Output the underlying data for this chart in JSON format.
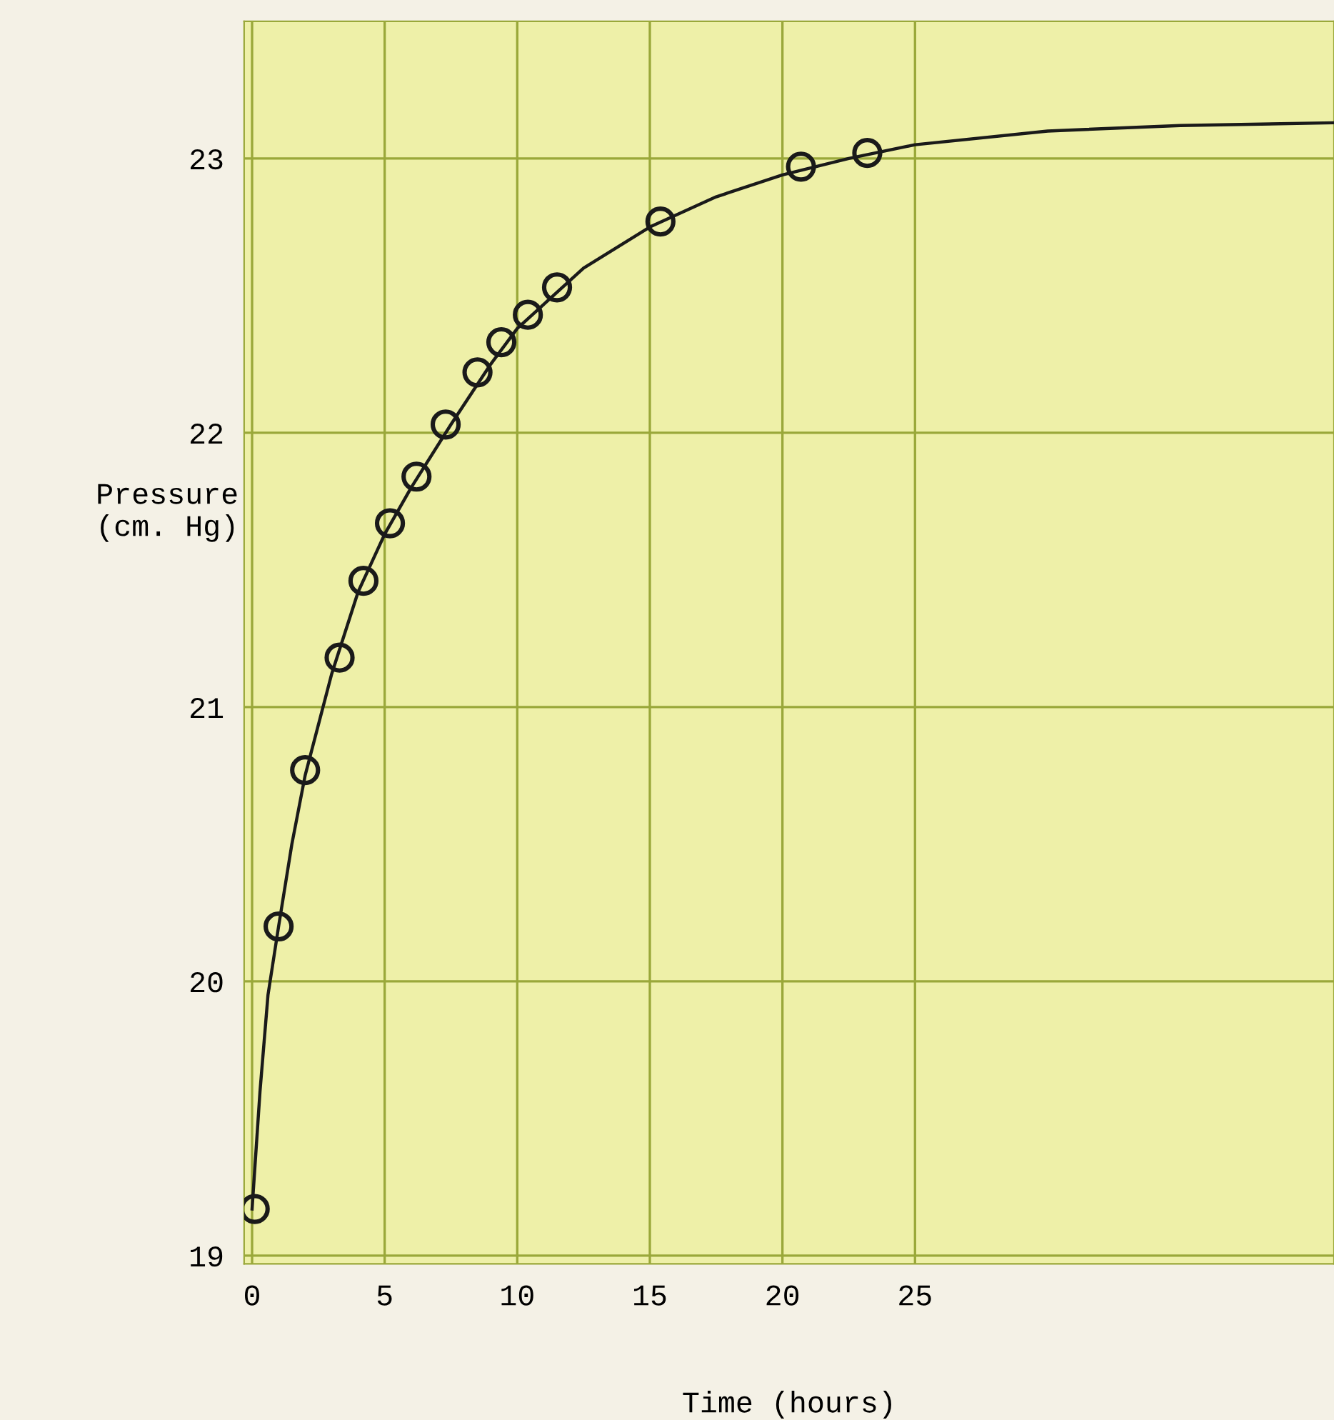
{
  "chart_data": {
    "type": "line",
    "xlabel": "Time (hours)",
    "ylabel": "Pressure\n(cm. Hg)",
    "xlim": [
      -0.3,
      40.8
    ],
    "ylim": [
      18.97,
      23.5
    ],
    "xticks": [
      0,
      5,
      10,
      15,
      20,
      25
    ],
    "yticks": [
      19,
      20,
      21,
      22,
      23
    ],
    "grid": true,
    "legend": false,
    "series": [
      {
        "type": "scatter",
        "marker": "circle",
        "color": "#1a1a1a",
        "x": [
          0.1,
          1.0,
          2.0,
          3.3,
          4.2,
          5.2,
          6.2,
          7.3,
          8.5,
          9.4,
          10.4,
          11.5,
          15.4,
          20.7,
          23.2
        ],
        "values": [
          19.17,
          20.2,
          20.77,
          21.18,
          21.46,
          21.67,
          21.84,
          22.03,
          22.22,
          22.33,
          22.43,
          22.53,
          22.77,
          22.97,
          23.02
        ]
      },
      {
        "marker": "none",
        "color": "#1a1a1a",
        "x": [
          0,
          0.3,
          0.6,
          1,
          1.5,
          2,
          3,
          4,
          5,
          6,
          7.5,
          9,
          10,
          12.5,
          15,
          17.5,
          20,
          22.5,
          25,
          30,
          35,
          40.8
        ],
        "values": [
          19.17,
          19.6,
          19.95,
          20.2,
          20.5,
          20.75,
          21.12,
          21.42,
          21.63,
          21.8,
          22.03,
          22.25,
          22.38,
          22.6,
          22.75,
          22.86,
          22.94,
          23.0,
          23.05,
          23.1,
          23.12,
          23.13
        ]
      }
    ]
  }
}
